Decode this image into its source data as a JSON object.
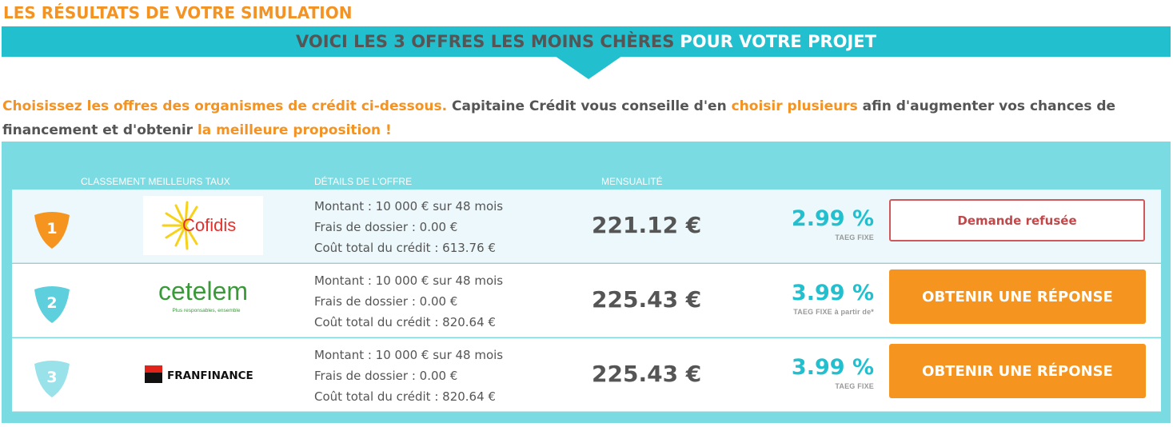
{
  "header": {
    "title": "LES RÉSULTATS DE VOTRE SIMULATION",
    "banner_dark": "VOICI LES 3 OFFRES LES MOINS CHÈRES",
    "banner_light": "POUR VOTRE PROJET"
  },
  "intro": {
    "p1": "Choisissez les offres des organismes de crédit ci-dessous.",
    "p2": " Capitaine Crédit vous conseille d'en ",
    "p3": "choisir plusieurs",
    "p4": " afin d'augmenter vos chances de financement et d'obtenir ",
    "p5": "la meilleure proposition !"
  },
  "columns": {
    "ranking": "CLASSEMENT MEILLEURS TAUX",
    "details": "DÉTAILS DE L'OFFRE",
    "monthly": "MENSUALITÉ"
  },
  "colors": {
    "accent_orange": "#f39323",
    "teal": "#22bfcf",
    "panel": "#7adbe2",
    "badge_1": "#f5951f",
    "badge_2": "#5ecfdc",
    "badge_3": "#9ae2ea"
  },
  "offers": [
    {
      "rank": "1",
      "lender": "Cofidis",
      "amount_line": "Montant : 10 000 € sur 48 mois",
      "fees_line": "Frais de dossier : 0.00 €",
      "cost_line": "Coût total du crédit : 613.76 €",
      "monthly": "221.12 €",
      "rate": "2.99 %",
      "rate_label": "TAEG FIXE",
      "action": "Demande refusée"
    },
    {
      "rank": "2",
      "lender": "cetelem",
      "lender_tagline": "Plus responsables, ensemble",
      "amount_line": "Montant : 10 000 € sur 48 mois",
      "fees_line": "Frais de dossier : 0.00 €",
      "cost_line": "Coût total du crédit : 820.64 €",
      "monthly": "225.43 €",
      "rate": "3.99 %",
      "rate_label": "TAEG FIXE à partir de*",
      "action": "OBTENIR UNE RÉPONSE"
    },
    {
      "rank": "3",
      "lender": "FRANFINANCE",
      "amount_line": "Montant : 10 000 € sur 48 mois",
      "fees_line": "Frais de dossier : 0.00 €",
      "cost_line": "Coût total du crédit : 820.64 €",
      "monthly": "225.43 €",
      "rate": "3.99 %",
      "rate_label": "TAEG FIXE",
      "action": "OBTENIR UNE RÉPONSE"
    }
  ]
}
